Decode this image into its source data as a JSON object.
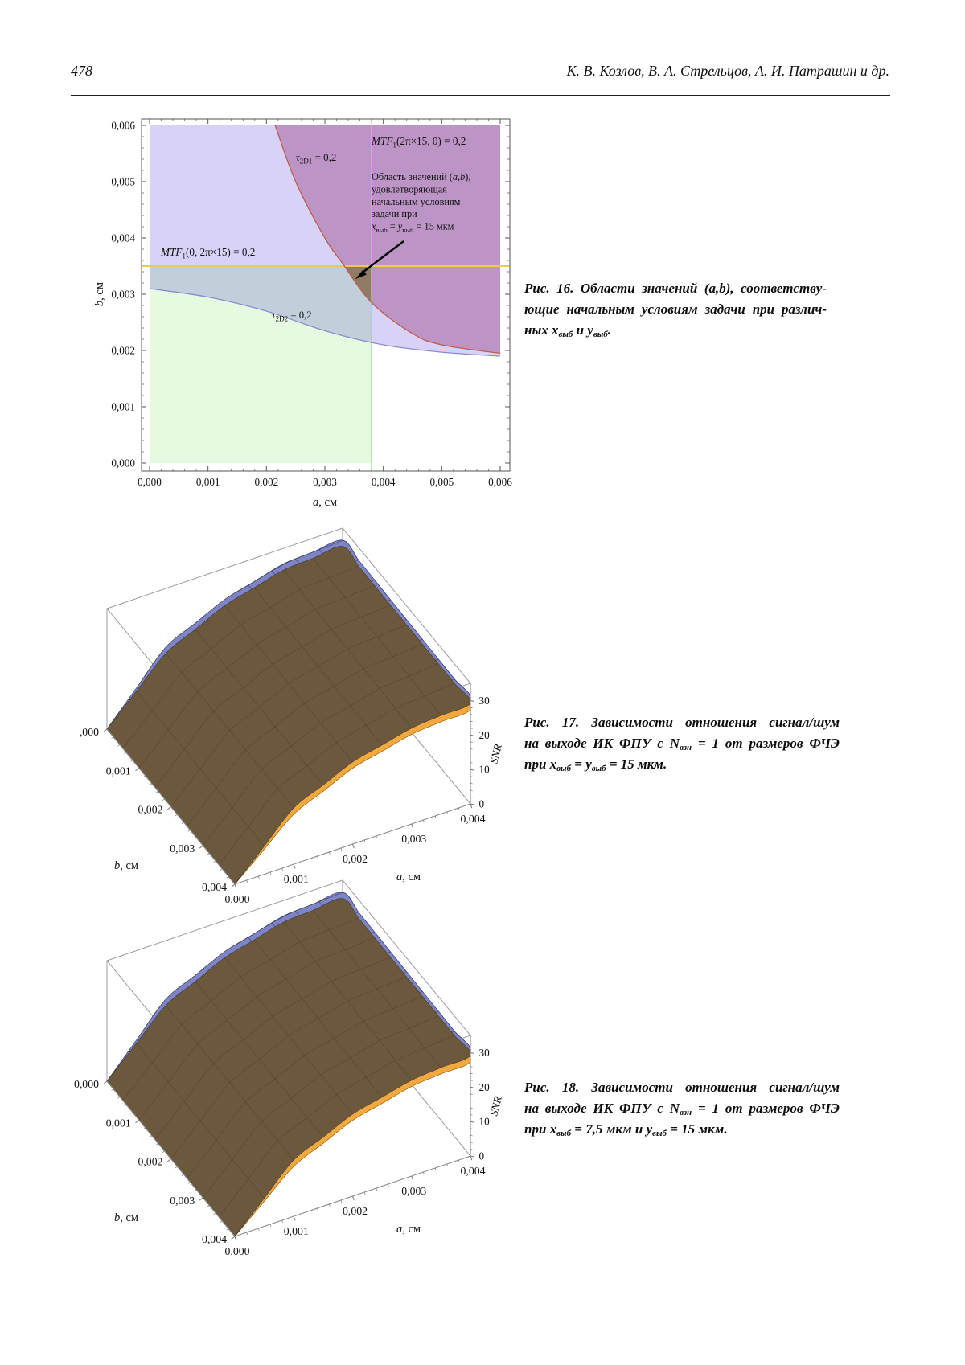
{
  "page": {
    "number": "478",
    "authors": "К. В. Козлов, В. А. Стрельцов, А. И. Патрашин и др."
  },
  "captions": {
    "cap16": [
      [
        {
          "t": "Рис. 16. Области значений ("
        },
        {
          "t": "a",
          "i": 1
        },
        {
          "t": ","
        },
        {
          "t": "b",
          "i": 1
        },
        {
          "t": "), соответству-"
        }
      ],
      [
        {
          "t": "ющие начальным условиям задачи при различ-"
        }
      ],
      [
        {
          "t": "ных "
        },
        {
          "t": "x",
          "i": 1
        },
        {
          "t": "выб",
          "sub": 1
        },
        {
          "t": " и "
        },
        {
          "t": "y",
          "i": 1
        },
        {
          "t": "выб",
          "sub": 1
        },
        {
          "t": "."
        }
      ]
    ],
    "cap17": [
      [
        {
          "t": "Рис. 17. Зависимости отношения сигнал/шум"
        }
      ],
      [
        {
          "t": "на выходе ИК ФПУ с "
        },
        {
          "t": "N",
          "i": 1
        },
        {
          "t": "взн",
          "sub": 1
        },
        {
          "t": " = 1 от размеров ФЧЭ"
        }
      ],
      [
        {
          "t": "при "
        },
        {
          "t": "x",
          "i": 1
        },
        {
          "t": "выб",
          "sub": 1
        },
        {
          "t": " = "
        },
        {
          "t": "y",
          "i": 1
        },
        {
          "t": "выб",
          "sub": 1
        },
        {
          "t": " = 15 мкм."
        }
      ]
    ],
    "cap18": [
      [
        {
          "t": "Рис. 18. Зависимости отношения сигнал/шум"
        }
      ],
      [
        {
          "t": "на выходе ИК ФПУ с "
        },
        {
          "t": "N",
          "i": 1
        },
        {
          "t": "взн",
          "sub": 1
        },
        {
          "t": " = 1 от размеров ФЧЭ"
        }
      ],
      [
        {
          "t": "при "
        },
        {
          "t": "x",
          "i": 1
        },
        {
          "t": "выб",
          "sub": 1
        },
        {
          "t": " = 7,5 мкм и "
        },
        {
          "t": "y",
          "i": 1
        },
        {
          "t": "выб",
          "sub": 1
        },
        {
          "t": " = 15 мкм."
        }
      ]
    ]
  },
  "chart_data": [
    {
      "id": "fig16",
      "type": "region",
      "xlabel": [
        {
          "t": "a",
          "i": 1
        },
        {
          "t": ", см"
        }
      ],
      "ylabel": [
        {
          "t": "b",
          "i": 1
        },
        {
          "t": ", см"
        }
      ],
      "xlim": [
        0,
        0.006
      ],
      "ylim": [
        0,
        0.006
      ],
      "x_ticks": [
        "0,000",
        "0,001",
        "0,002",
        "0,003",
        "0,004",
        "0,005",
        "0,006"
      ],
      "y_ticks": [
        "0,000",
        "0,001",
        "0,002",
        "0,003",
        "0,004",
        "0,005",
        "0,006"
      ],
      "yellow_line_b": 0.0035,
      "green_line_a": 0.0038,
      "blue_curve": [
        [
          0,
          0.0031
        ],
        [
          0.001,
          0.00295
        ],
        [
          0.002,
          0.0027
        ],
        [
          0.003,
          0.00235
        ],
        [
          0.004,
          0.0021
        ],
        [
          0.005,
          0.00197
        ],
        [
          0.006,
          0.0019
        ]
      ],
      "red_curve": [
        [
          0.00215,
          0.006
        ],
        [
          0.0025,
          0.005
        ],
        [
          0.003,
          0.004
        ],
        [
          0.0033,
          0.00355
        ],
        [
          0.0038,
          0.00285
        ],
        [
          0.0045,
          0.0023
        ],
        [
          0.005,
          0.0021
        ],
        [
          0.006,
          0.00195
        ]
      ],
      "labels": {
        "tau1": [
          {
            "t": "τ",
            "i": 1
          },
          {
            "t": "2D1",
            "sub": 1
          },
          {
            "t": " = 0,2"
          }
        ],
        "tau2": [
          {
            "t": "τ",
            "i": 1
          },
          {
            "t": "2D2",
            "sub": 1
          },
          {
            "t": " = 0,2"
          }
        ],
        "mtf_x": [
          {
            "t": "MTF",
            "i": 1
          },
          {
            "t": "1",
            "sub": 1
          },
          {
            "t": "(2π×15, 0) = 0,2"
          }
        ],
        "mtf_y": [
          {
            "t": "MTF",
            "i": 1
          },
          {
            "t": "1",
            "sub": 1
          },
          {
            "t": "(0, 2π×15) = 0,2"
          }
        ],
        "annotation": [
          [
            {
              "t": "Область значений ("
            },
            {
              "t": "a",
              "i": 1
            },
            {
              "t": ","
            },
            {
              "t": "b",
              "i": 1
            },
            {
              "t": "),"
            }
          ],
          [
            {
              "t": "удовлетворяющая"
            }
          ],
          [
            {
              "t": "начальным условиям"
            }
          ],
          [
            {
              "t": "задачи при"
            }
          ],
          [
            {
              "t": "x",
              "i": 1
            },
            {
              "t": "выб",
              "sub": 1
            },
            {
              "t": " = "
            },
            {
              "t": "y",
              "i": 1
            },
            {
              "t": "выб",
              "sub": 1
            },
            {
              "t": " = 15 мкм"
            }
          ]
        ]
      },
      "colors": {
        "lavender": "#d8d2f8",
        "green": "#e6fae2",
        "pink": "#e0b4cc",
        "olive": "#8d7b5e",
        "yellow_line": "#f2c84f",
        "green_line": "#94e094",
        "red_stroke": "#c25b48",
        "blue_stroke": "#8b8bd0"
      }
    },
    {
      "id": "fig17",
      "type": "surface3d",
      "xlabel": [
        {
          "t": "a",
          "i": 1
        },
        {
          "t": ", см"
        }
      ],
      "ylabel": [
        {
          "t": "b",
          "i": 1
        },
        {
          "t": ", см"
        }
      ],
      "zlabel": [
        {
          "t": "SNR",
          "i": 1
        }
      ],
      "a_ticks": [
        "0,000",
        "0,001",
        "0,002",
        "0,003",
        "0,004"
      ],
      "b_ticks": [
        ",000",
        "0,001",
        "0,002",
        "0,003",
        "0,004"
      ],
      "z_ticks": [
        "0",
        "10",
        "20",
        "30"
      ],
      "alim": [
        0,
        0.004
      ],
      "blim": [
        0,
        0.004
      ],
      "zlim": [
        0,
        35
      ],
      "surfaces": [
        {
          "name": "SNR upper surface",
          "color": "#7d85c6",
          "z_rear": [
            0,
            18,
            26,
            30.5,
            31.5
          ],
          "z_front": [
            0,
            17,
            25,
            29.5,
            30.5
          ]
        },
        {
          "name": "SNR lower surface",
          "color": "#f4a93e",
          "z_rear": [
            0,
            16,
            23.5,
            27.5,
            28.5
          ],
          "z_front": [
            0,
            14.5,
            22,
            26,
            27.5
          ]
        }
      ],
      "overlap_color": "#6c583d"
    },
    {
      "id": "fig18",
      "type": "surface3d",
      "xlabel": [
        {
          "t": "a",
          "i": 1
        },
        {
          "t": ", см"
        }
      ],
      "ylabel": [
        {
          "t": "b",
          "i": 1
        },
        {
          "t": ", см"
        }
      ],
      "zlabel": [
        {
          "t": "SNR",
          "i": 1
        }
      ],
      "a_ticks": [
        "0,000",
        "0,001",
        "0,002",
        "0,003",
        "0,004"
      ],
      "b_ticks": [
        "0,000",
        "0,001",
        "0,002",
        "0,003",
        "0,004"
      ],
      "z_ticks": [
        "0",
        "10",
        "20",
        "30"
      ],
      "alim": [
        0,
        0.004
      ],
      "blim": [
        0,
        0.004
      ],
      "zlim": [
        0,
        35
      ],
      "surfaces": [
        {
          "name": "SNR upper surface",
          "color": "#7d85c6",
          "z_rear": [
            0,
            18,
            26,
            30.5,
            31.5
          ],
          "z_front": [
            0,
            17,
            25,
            29.5,
            30.5
          ]
        },
        {
          "name": "SNR lower surface",
          "color": "#f4a93e",
          "z_rear": [
            0,
            16,
            23.5,
            27.5,
            28.5
          ],
          "z_front": [
            0,
            14.5,
            22,
            26,
            27.5
          ]
        }
      ],
      "overlap_color": "#6c583d"
    }
  ]
}
